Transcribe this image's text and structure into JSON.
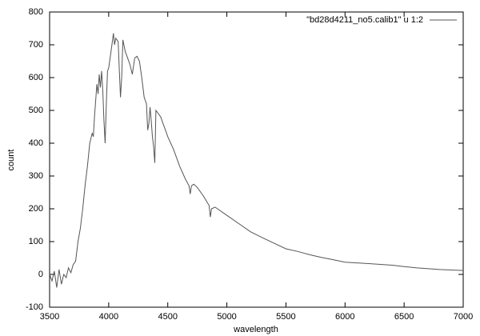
{
  "chart_data": {
    "type": "line",
    "xlabel": "wavelength",
    "ylabel": "count",
    "xlim": [
      3500,
      7000
    ],
    "xticks": [
      3500,
      4000,
      4500,
      5000,
      5500,
      6000,
      6500,
      7000
    ],
    "ylim": [
      -100,
      800
    ],
    "yticks": [
      -100,
      0,
      100,
      200,
      300,
      400,
      500,
      600,
      700,
      800
    ],
    "legend": "upper right",
    "series": [
      {
        "name": "\"bd28d4211_no5.calib1\" u 1:2",
        "color": "#555555",
        "x": [
          3500,
          3520,
          3540,
          3560,
          3580,
          3600,
          3620,
          3640,
          3660,
          3680,
          3700,
          3720,
          3740,
          3760,
          3780,
          3800,
          3820,
          3840,
          3860,
          3870,
          3880,
          3890,
          3900,
          3910,
          3920,
          3930,
          3940,
          3950,
          3960,
          3970,
          3980,
          3990,
          4000,
          4020,
          4040,
          4050,
          4060,
          4080,
          4090,
          4100,
          4110,
          4120,
          4140,
          4160,
          4180,
          4200,
          4220,
          4240,
          4260,
          4280,
          4300,
          4320,
          4330,
          4340,
          4350,
          4360,
          4370,
          4380,
          4390,
          4400,
          4420,
          4440,
          4460,
          4480,
          4500,
          4550,
          4600,
          4650,
          4680,
          4690,
          4700,
          4720,
          4750,
          4800,
          4850,
          4860,
          4870,
          4900,
          5000,
          5100,
          5200,
          5300,
          5400,
          5500,
          5600,
          5700,
          5800,
          5900,
          6000,
          6200,
          6400,
          6500,
          6600,
          6800,
          7000
        ],
        "values": [
          0,
          -20,
          10,
          -40,
          15,
          -30,
          0,
          -10,
          20,
          5,
          30,
          40,
          100,
          140,
          200,
          270,
          330,
          400,
          430,
          420,
          480,
          530,
          580,
          550,
          610,
          570,
          620,
          560,
          470,
          400,
          520,
          620,
          630,
          680,
          735,
          700,
          720,
          710,
          620,
          540,
          600,
          715,
          680,
          660,
          640,
          610,
          660,
          665,
          650,
          600,
          540,
          520,
          440,
          460,
          510,
          470,
          420,
          390,
          340,
          500,
          490,
          480,
          460,
          440,
          420,
          380,
          330,
          290,
          270,
          245,
          270,
          275,
          265,
          240,
          210,
          175,
          200,
          205,
          180,
          155,
          130,
          112,
          95,
          78,
          70,
          60,
          52,
          45,
          37,
          33,
          28,
          24,
          20,
          15,
          12
        ]
      }
    ]
  }
}
